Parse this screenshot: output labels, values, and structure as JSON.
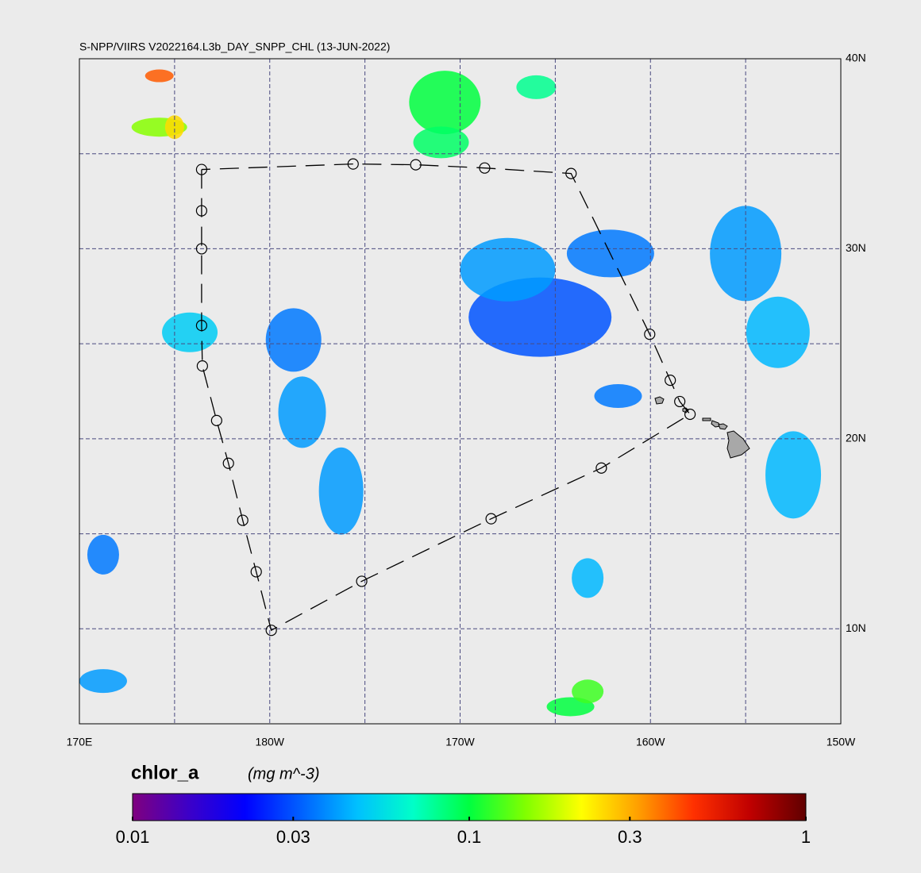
{
  "title": "S-NPP/VIIRS V2022164.L3b_DAY_SNPP_CHL (13-JUN-2022)",
  "map": {
    "xlim": [
      170,
      210
    ],
    "ylim": [
      5,
      40
    ],
    "xticks": [
      {
        "value": 170,
        "label": "170E"
      },
      {
        "value": 180,
        "label": "180W"
      },
      {
        "value": 190,
        "label": "170W"
      },
      {
        "value": 200,
        "label": "160W"
      },
      {
        "value": 210,
        "label": "150W"
      }
    ],
    "yticks": [
      {
        "value": 10,
        "label": "10N"
      },
      {
        "value": 20,
        "label": "20N"
      },
      {
        "value": 30,
        "label": "30N"
      },
      {
        "value": 40,
        "label": "40N"
      }
    ],
    "grid_lons": [
      175,
      180,
      185,
      190,
      195,
      200,
      205
    ],
    "grid_lats": [
      10,
      15,
      20,
      25,
      30,
      35
    ],
    "track": {
      "lon": [
        176.42,
        176.42,
        176.42,
        176.42,
        176.46,
        177.21,
        177.83,
        178.58,
        179.29,
        180.08,
        184.83,
        191.63,
        197.42,
        202.08,
        201.54,
        201.04,
        199.96,
        195.83,
        191.29,
        187.67,
        184.38
      ],
      "lat": [
        34.17,
        32.0,
        30.0,
        25.96,
        23.83,
        20.96,
        18.71,
        15.71,
        13.0,
        9.92,
        12.5,
        15.79,
        18.46,
        21.29,
        21.96,
        23.08,
        25.5,
        33.96,
        34.25,
        34.42,
        34.46
      ]
    },
    "chlor_patches": {
      "lon": [
        194.2,
        192.5,
        197.9,
        205.0,
        206.7,
        207.5,
        181.25,
        181.7,
        183.75,
        175.8,
        189.2,
        189.0,
        195.8,
        196.7,
        196.7,
        174.2,
        174.2,
        175.0,
        171.25,
        171.25,
        194.0,
        198.3
      ],
      "lat": [
        26.4,
        28.9,
        29.75,
        29.75,
        25.6,
        18.1,
        25.2,
        21.4,
        17.25,
        25.6,
        37.7,
        35.6,
        5.9,
        6.7,
        12.67,
        36.4,
        39.1,
        36.4,
        7.25,
        13.9,
        38.5,
        22.25
      ],
      "values": [
        0.03,
        0.04,
        0.035,
        0.04,
        0.045,
        0.045,
        0.035,
        0.04,
        0.04,
        0.05,
        0.1,
        0.09,
        0.1,
        0.12,
        0.045,
        0.15,
        0.4,
        0.25,
        0.04,
        0.035,
        0.08,
        0.035
      ]
    }
  },
  "colorbar": {
    "title": "chlor_a",
    "units": "(mg m^-3)",
    "log_scale": true,
    "lim": [
      0.01,
      1
    ],
    "ticks": [
      0.01,
      0.03,
      0.1,
      0.3,
      1
    ],
    "colormap": [
      "#7f007f",
      "#3c00c8",
      "#0000ff",
      "#0060ff",
      "#00c0ff",
      "#00ffc8",
      "#00ff40",
      "#80ff00",
      "#ffff00",
      "#ffa000",
      "#ff3000",
      "#c00000",
      "#600000"
    ]
  }
}
